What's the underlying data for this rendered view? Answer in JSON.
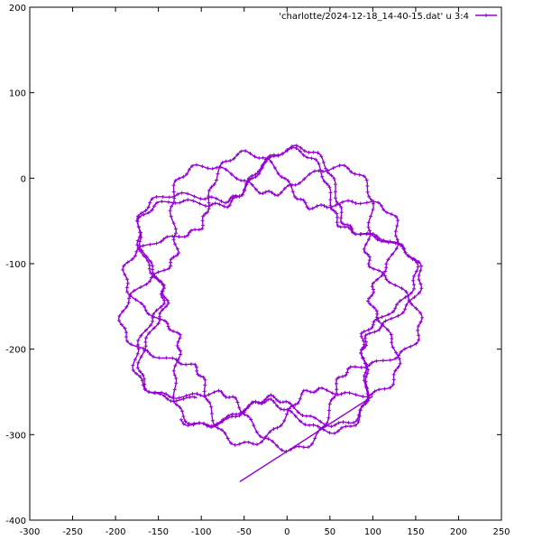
{
  "chart_data": {
    "type": "line",
    "title": "",
    "xlabel": "",
    "ylabel": "",
    "xlim": [
      -300,
      250
    ],
    "ylim": [
      -400,
      200
    ],
    "xticks": [
      -300,
      -250,
      -200,
      -150,
      -100,
      -50,
      0,
      50,
      100,
      150,
      200,
      250
    ],
    "yticks": [
      -400,
      -300,
      -200,
      -100,
      0,
      100,
      200
    ],
    "grid": false,
    "legend_position": "top-right",
    "series": [
      {
        "name": "'charlotte/2024-12-18_14-40-15.dat' u 3:4",
        "color": "#9400d3",
        "marker": "+",
        "curve": {
          "center": [
            -20,
            -140
          ],
          "base_radius": 148,
          "lobe_amplitude": 28,
          "lobes": 5,
          "precession_per_turn": 0.32,
          "turns": 4.0,
          "radius_drift_per_turn": 4,
          "start_angle_deg": 234
        },
        "end_segment": {
          "from": [
            100,
            -255
          ],
          "to": [
            -55,
            -355
          ]
        }
      }
    ]
  }
}
